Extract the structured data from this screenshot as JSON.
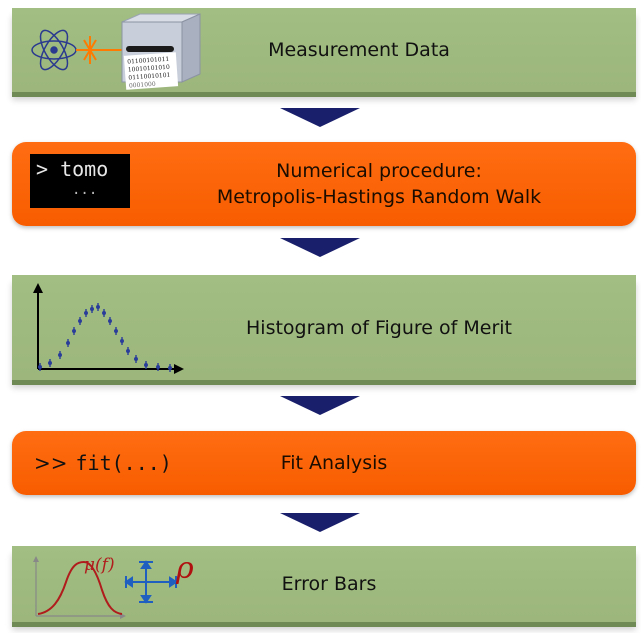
{
  "steps": [
    {
      "label": "Measurement Data",
      "style": "green",
      "icon": "measurement-device-icon",
      "binary_text": [
        "01100101011",
        "10010101010",
        "01110010101",
        "0001000"
      ]
    },
    {
      "label_line1": "Numerical procedure:",
      "label_line2": "Metropolis-Hastings Random Walk",
      "style": "orange",
      "terminal_prompt": "> tomo",
      "terminal_continuation": "..."
    },
    {
      "label": "Histogram of Figure of Merit",
      "style": "green",
      "icon": "histogram-icon"
    },
    {
      "label": "Fit Analysis",
      "style": "orange",
      "command_prompt": ">>",
      "command_text": "fit(...)"
    },
    {
      "label": "Error Bars",
      "style": "green",
      "icon": "error-bars-icon",
      "mu_label": "μ(f)",
      "rho_label": "ρ"
    }
  ],
  "colors": {
    "green_box": "#9eb87e",
    "orange_box": "#fb6107",
    "arrow": "#1a1f6b",
    "histogram_points": "#2a3d9a",
    "gaussian_curve": "#b01c1c",
    "error_cross": "#1f5fbf",
    "rho": "#b01010"
  }
}
